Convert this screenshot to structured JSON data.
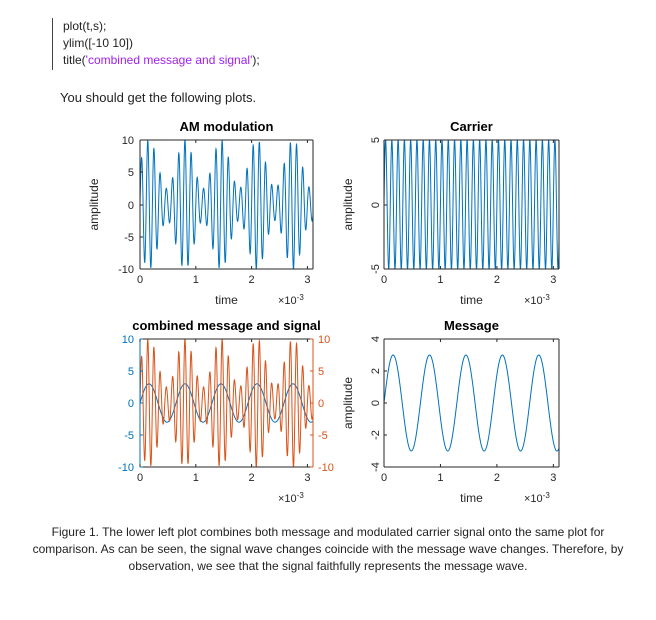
{
  "code": {
    "line1": "plot(t,s);",
    "line2": "ylim([-10 10])",
    "line3_prefix": "title(",
    "line3_string": "'combined message and signal'",
    "line3_suffix": ");"
  },
  "intro_text": "You should get the following plots.",
  "caption": "Figure 1.  The lower left plot combines both message and modulated carrier signal onto the same plot for comparison.  As can be seen, the signal wave changes coincide with the message wave changes.  Therefore, by observation, we see that the signal faithfully represents the message wave.",
  "colors": {
    "blue": "#0072bd",
    "orange": "#d95319",
    "axis": "#262626"
  },
  "chart_data": [
    {
      "id": "am",
      "type": "line",
      "title": "AM modulation",
      "xlabel": "time",
      "ylabel": "amplitude",
      "x_exponent_label": "×10",
      "x_exponent": "-3",
      "xlim": [
        0,
        0.0031
      ],
      "ylim": [
        -10,
        10
      ],
      "xticks": [
        "0",
        "1",
        "2",
        "3"
      ],
      "yticks": [
        "10",
        "5",
        "0",
        "-5",
        "-10"
      ],
      "series": [
        {
          "function": "carrier * message",
          "carrier_amplitude": 5,
          "carrier_frequency_hz": 9000,
          "message_amplitude": 3,
          "message_frequency_hz": 1550,
          "color": "#0072bd"
        }
      ]
    },
    {
      "id": "carrier",
      "type": "line",
      "title": "Carrier",
      "xlabel": "time",
      "ylabel": "amplitude",
      "x_exponent_label": "×10",
      "x_exponent": "-3",
      "xlim": [
        0,
        0.0031
      ],
      "ylim": [
        -5,
        5
      ],
      "xticks": [
        "0",
        "1",
        "2",
        "3"
      ],
      "yticks": [
        "5",
        "0",
        "-5"
      ],
      "series": [
        {
          "function": "sine",
          "amplitude": 5,
          "frequency_hz": 9000,
          "color": "#0072bd"
        }
      ]
    },
    {
      "id": "combined",
      "type": "line",
      "title": "combined message and signal",
      "xlabel": "",
      "ylabel": "",
      "x_exponent_label": "×10",
      "x_exponent": "-3",
      "xlim": [
        0,
        0.0031
      ],
      "ylim": [
        -10,
        10
      ],
      "yright_lim": [
        -10,
        10
      ],
      "xticks": [
        "0",
        "1",
        "2",
        "3"
      ],
      "yticks": [
        "10",
        "5",
        "0",
        "-5",
        "-10"
      ],
      "yticks_right": [
        "10",
        "5",
        "0",
        "-5",
        "-10"
      ],
      "series": [
        {
          "function": "sine",
          "amplitude": 3,
          "frequency_hz": 1550,
          "color": "#0072bd",
          "axis": "left"
        },
        {
          "function": "carrier * message",
          "carrier_amplitude": 5,
          "carrier_frequency_hz": 9000,
          "message_amplitude": 3,
          "message_frequency_hz": 1550,
          "color": "#d95319",
          "axis": "right"
        }
      ]
    },
    {
      "id": "message",
      "type": "line",
      "title": "Message",
      "xlabel": "time",
      "ylabel": "amplitude",
      "x_exponent_label": "×10",
      "x_exponent": "-3",
      "xlim": [
        0,
        0.0031
      ],
      "ylim": [
        -4,
        4
      ],
      "xticks": [
        "0",
        "1",
        "2",
        "3"
      ],
      "yticks": [
        "4",
        "2",
        "0",
        "-2",
        "-4"
      ],
      "series": [
        {
          "function": "sine",
          "amplitude": 3,
          "frequency_hz": 1550,
          "color": "#0072bd"
        }
      ]
    }
  ]
}
